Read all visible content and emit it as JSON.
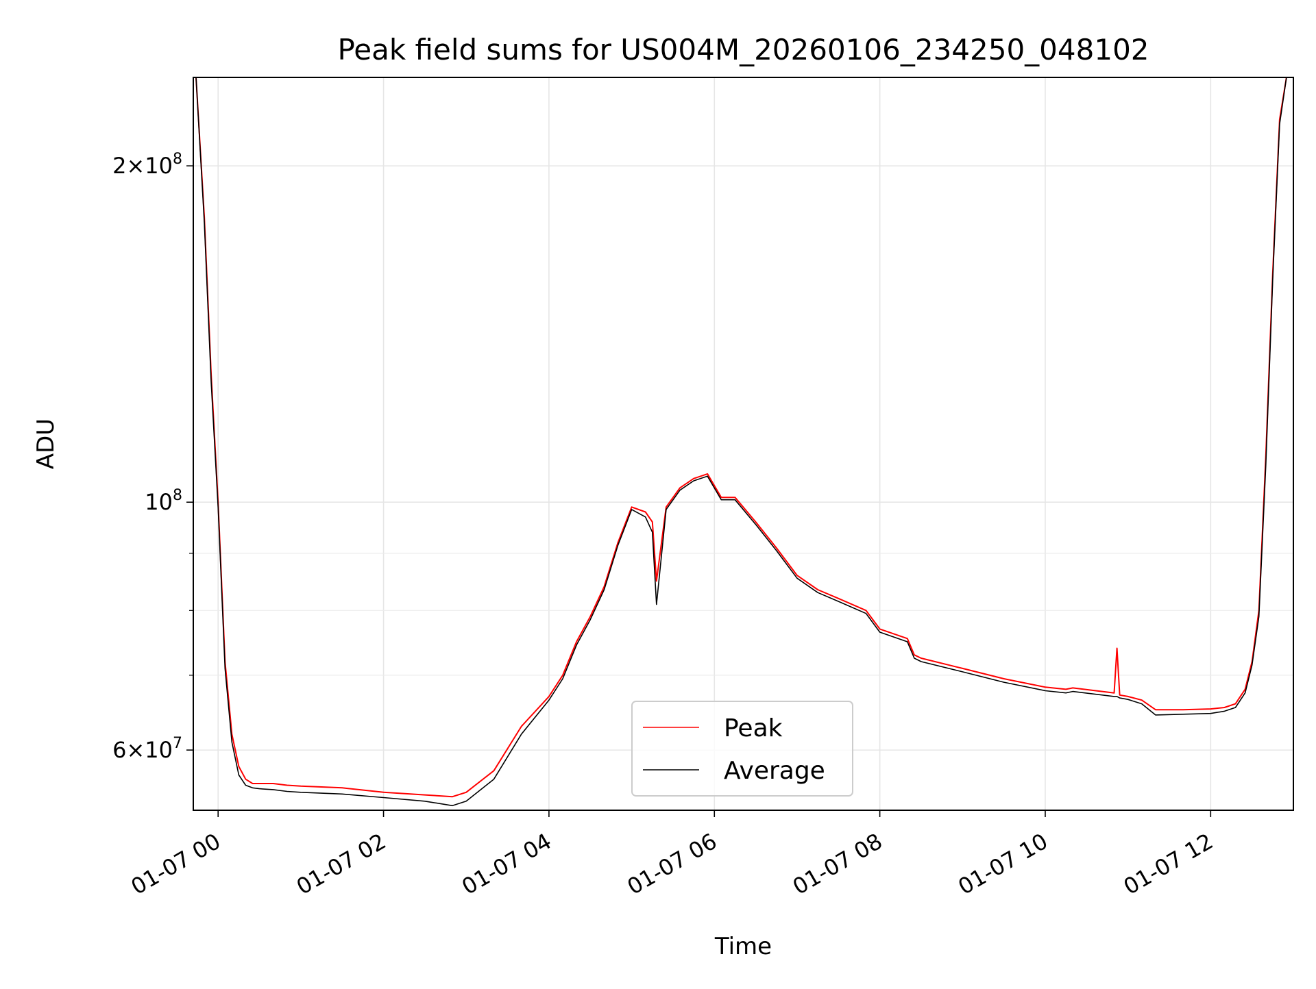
{
  "chart_data": {
    "type": "line",
    "title": "Peak field sums for US004M_20260106_234250_048102",
    "xlabel": "Time",
    "ylabel": "ADU",
    "y_scale": "log",
    "grid": true,
    "legend_position": "lower-center",
    "xlim": [
      "01-06 23:42",
      "01-07 13:00"
    ],
    "ylim": [
      53000000,
      240000000
    ],
    "x_ticks": [
      {
        "value": "01-07 00:00",
        "label": "01-07 00"
      },
      {
        "value": "01-07 02:00",
        "label": "01-07 02"
      },
      {
        "value": "01-07 04:00",
        "label": "01-07 04"
      },
      {
        "value": "01-07 06:00",
        "label": "01-07 06"
      },
      {
        "value": "01-07 08:00",
        "label": "01-07 08"
      },
      {
        "value": "01-07 10:00",
        "label": "01-07 10"
      },
      {
        "value": "01-07 12:00",
        "label": "01-07 12"
      }
    ],
    "y_ticks": [
      {
        "value": 60000000,
        "base": "6×10",
        "exp": "7"
      },
      {
        "value": 100000000,
        "base": "10",
        "exp": "8"
      },
      {
        "value": 200000000,
        "base": "2×10",
        "exp": "8"
      }
    ],
    "y_minor_ticks": [
      70000000,
      80000000,
      90000000
    ],
    "series": [
      {
        "name": "Peak",
        "color": "#ff0000",
        "x": [
          "01-06 23:44",
          "01-06 23:50",
          "01-06 23:55",
          "01-07 00:00",
          "01-07 00:05",
          "01-07 00:10",
          "01-07 00:15",
          "01-07 00:20",
          "01-07 00:25",
          "01-07 00:30",
          "01-07 00:40",
          "01-07 00:50",
          "01-07 01:00",
          "01-07 01:30",
          "01-07 02:00",
          "01-07 02:30",
          "01-07 02:50",
          "01-07 03:00",
          "01-07 03:20",
          "01-07 03:40",
          "01-07 04:00",
          "01-07 04:10",
          "01-07 04:20",
          "01-07 04:30",
          "01-07 04:40",
          "01-07 04:50",
          "01-07 05:00",
          "01-07 05:10",
          "01-07 05:15",
          "01-07 05:18",
          "01-07 05:25",
          "01-07 05:35",
          "01-07 05:45",
          "01-07 05:55",
          "01-07 06:05",
          "01-07 06:15",
          "01-07 06:30",
          "01-07 06:45",
          "01-07 07:00",
          "01-07 07:15",
          "01-07 07:30",
          "01-07 07:50",
          "01-07 08:00",
          "01-07 08:20",
          "01-07 08:25",
          "01-07 08:30",
          "01-07 09:00",
          "01-07 09:30",
          "01-07 10:00",
          "01-07 10:15",
          "01-07 10:20",
          "01-07 10:50",
          "01-07 10:52",
          "01-07 10:54",
          "01-07 11:00",
          "01-07 11:10",
          "01-07 11:20",
          "01-07 11:40",
          "01-07 12:00",
          "01-07 12:10",
          "01-07 12:18",
          "01-07 12:25",
          "01-07 12:30",
          "01-07 12:35",
          "01-07 12:40",
          "01-07 12:45",
          "01-07 12:50",
          "01-07 12:55"
        ],
        "values": [
          240000000,
          180000000,
          130000000,
          100000000,
          72000000,
          62000000,
          58000000,
          56500000,
          56000000,
          56000000,
          56000000,
          55800000,
          55700000,
          55500000,
          55000000,
          54700000,
          54500000,
          55000000,
          57500000,
          63000000,
          67000000,
          70000000,
          75000000,
          79000000,
          84000000,
          92000000,
          99000000,
          98000000,
          96000000,
          85000000,
          99000000,
          103000000,
          105000000,
          106000000,
          101000000,
          101000000,
          96000000,
          91000000,
          86000000,
          83500000,
          82000000,
          80000000,
          77000000,
          75500000,
          73000000,
          72500000,
          71000000,
          69500000,
          68300000,
          68000000,
          68200000,
          67500000,
          74000000,
          67200000,
          67000000,
          66500000,
          65200000,
          65200000,
          65300000,
          65500000,
          66000000,
          68000000,
          72000000,
          80000000,
          110000000,
          160000000,
          220000000,
          240000000
        ]
      },
      {
        "name": "Average",
        "color": "#000000",
        "x": [
          "01-06 23:44",
          "01-06 23:50",
          "01-06 23:55",
          "01-07 00:00",
          "01-07 00:05",
          "01-07 00:10",
          "01-07 00:15",
          "01-07 00:20",
          "01-07 00:25",
          "01-07 00:30",
          "01-07 00:40",
          "01-07 00:50",
          "01-07 01:00",
          "01-07 01:30",
          "01-07 02:00",
          "01-07 02:30",
          "01-07 02:50",
          "01-07 03:00",
          "01-07 03:20",
          "01-07 03:40",
          "01-07 04:00",
          "01-07 04:10",
          "01-07 04:20",
          "01-07 04:30",
          "01-07 04:40",
          "01-07 04:50",
          "01-07 05:00",
          "01-07 05:10",
          "01-07 05:15",
          "01-07 05:18",
          "01-07 05:25",
          "01-07 05:35",
          "01-07 05:45",
          "01-07 05:55",
          "01-07 06:05",
          "01-07 06:15",
          "01-07 06:30",
          "01-07 06:45",
          "01-07 07:00",
          "01-07 07:15",
          "01-07 07:30",
          "01-07 07:50",
          "01-07 08:00",
          "01-07 08:20",
          "01-07 08:25",
          "01-07 08:30",
          "01-07 09:00",
          "01-07 09:30",
          "01-07 10:00",
          "01-07 10:15",
          "01-07 10:20",
          "01-07 10:50",
          "01-07 10:52",
          "01-07 10:54",
          "01-07 11:00",
          "01-07 11:10",
          "01-07 11:20",
          "01-07 11:40",
          "01-07 12:00",
          "01-07 12:10",
          "01-07 12:18",
          "01-07 12:25",
          "01-07 12:30",
          "01-07 12:35",
          "01-07 12:40",
          "01-07 12:45",
          "01-07 12:50",
          "01-07 12:55"
        ],
        "values": [
          240000000,
          178000000,
          128000000,
          99000000,
          71000000,
          61000000,
          57000000,
          55800000,
          55500000,
          55400000,
          55300000,
          55100000,
          55000000,
          54800000,
          54400000,
          54000000,
          53500000,
          54000000,
          56500000,
          62000000,
          66500000,
          69500000,
          74500000,
          78500000,
          83500000,
          91500000,
          98500000,
          97000000,
          94000000,
          81000000,
          98500000,
          102500000,
          104500000,
          105500000,
          100500000,
          100500000,
          95500000,
          90500000,
          85500000,
          83000000,
          81500000,
          79500000,
          76500000,
          75000000,
          72500000,
          72000000,
          70500000,
          69000000,
          67800000,
          67500000,
          67700000,
          67000000,
          67000000,
          66800000,
          66600000,
          66000000,
          64500000,
          64600000,
          64700000,
          65000000,
          65500000,
          67500000,
          71500000,
          79000000,
          108000000,
          158000000,
          218000000,
          240000000
        ]
      }
    ]
  }
}
